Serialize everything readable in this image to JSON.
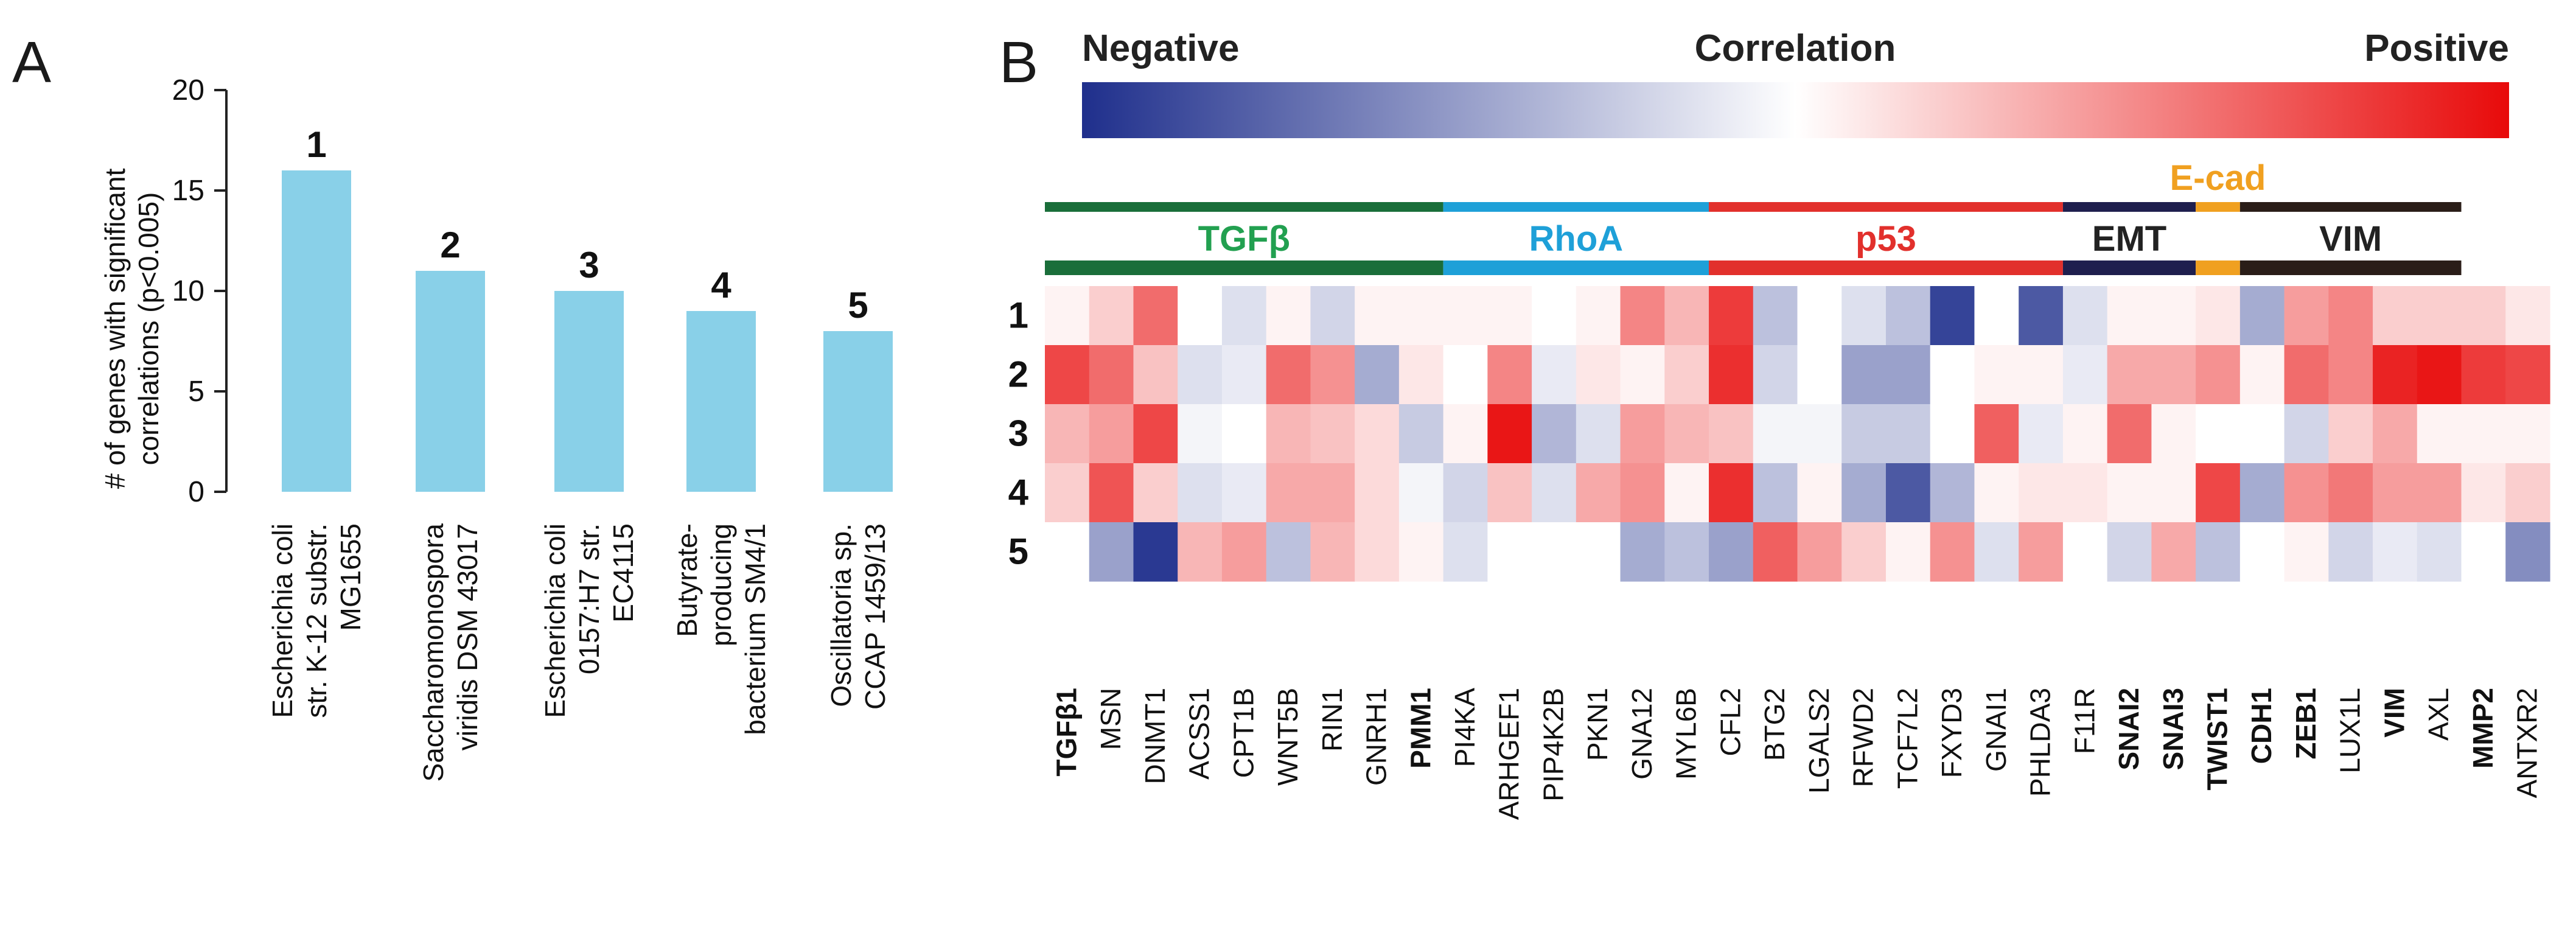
{
  "panel_a_letter": "A",
  "panel_b_letter": "B",
  "colors": {
    "bar": "#89d0e8",
    "tgfb": "#1a6e3a",
    "tgfb_text": "#22a050",
    "rhoa": "#1ea0d8",
    "p53": "#e2302c",
    "emt": "#1f1f4e",
    "ecad": "#f0a020",
    "vim": "#2a1d18",
    "negative": "#1f2f8c",
    "positive": "#e80a0a"
  },
  "chart_data": [
    {
      "type": "bar",
      "title": "",
      "ylabel_line1": "# of genes with significant",
      "ylabel_line2": "correlations (p<0.005)",
      "ylim": [
        0,
        20
      ],
      "yticks": [
        "0",
        "5",
        "10",
        "15",
        "20"
      ],
      "values": [
        16,
        11,
        10,
        9,
        8
      ],
      "bar_labels": [
        "1",
        "2",
        "3",
        "4",
        "5"
      ],
      "categories": [
        [
          "Escherichia coli",
          "str. K-12 substr.",
          "MG1655"
        ],
        [
          "Saccharomonospora",
          "viridis DSM 43017"
        ],
        [
          "Escherichia coli",
          "0157:H7 str.",
          "EC4115"
        ],
        [
          "Butyrate-",
          "producing",
          "bacterium SM4/1"
        ],
        [
          "Oscillatoria sp.",
          "CCAP 1459/13"
        ]
      ]
    },
    {
      "type": "heatmap",
      "scale": {
        "negative_label": "Negative",
        "center_label": "Correlation",
        "positive_label": "Positive",
        "range": [
          -1,
          1
        ]
      },
      "groups": [
        {
          "label": "TGFβ",
          "start": 0,
          "end": 8,
          "color_key": "tgfb"
        },
        {
          "label": "RhoA",
          "start": 9,
          "end": 14,
          "color_key": "rhoa"
        },
        {
          "label": "p53",
          "start": 15,
          "end": 22,
          "color_key": "p53"
        },
        {
          "label": "EMT",
          "start": 23,
          "end": 25,
          "color_key": "emt"
        },
        {
          "label": "E-cad",
          "start": 26,
          "end": 26,
          "color_key": "ecad"
        },
        {
          "label": "VIM",
          "start": 27,
          "end": 31,
          "color_key": "vim"
        }
      ],
      "rows": [
        "1",
        "2",
        "3",
        "4",
        "5"
      ],
      "columns": [
        "TGFβ1",
        "MSN",
        "DNMT1",
        "ACSS1",
        "CPT1B",
        "WNT5B",
        "RIN1",
        "GNRH1",
        "PMM1",
        "PI4KA",
        "ARHGEF1",
        "PIP4K2B",
        "PKN1",
        "GNA12",
        "MYL6B",
        "CFL2",
        "BTG2",
        "LGALS2",
        "RFWD2",
        "TCF7L2",
        "FXYD3",
        "GNAI1",
        "PHLDA3",
        "F11R",
        "SNAI2",
        "SNAI3",
        "TWIST1",
        "CDH1",
        "ZEB1",
        "LUX1L",
        "VIM",
        "AXL",
        "MMP2",
        "ANTXR2"
      ],
      "bold_columns": [
        "TGFβ1",
        "PMM1",
        "SNAI2",
        "SNAI3",
        "TWIST1",
        "CDH1",
        "ZEB1",
        "VIM",
        "MMP2"
      ],
      "values": [
        [
          0.05,
          0.2,
          0.6,
          0.0,
          -0.15,
          0.05,
          -0.2,
          0.05,
          0.05,
          0.05,
          0.05,
          0.0,
          0.05,
          0.5,
          0.3,
          0.8,
          -0.3,
          0.0,
          -0.15,
          -0.3,
          -0.9,
          0.0,
          -0.8,
          -0.15,
          0.05,
          0.05,
          0.1,
          -0.4,
          0.4,
          0.5,
          0.2,
          0.2,
          0.2,
          0.1
        ],
        [
          0.75,
          0.6,
          0.25,
          -0.15,
          -0.1,
          0.6,
          0.45,
          -0.4,
          0.1,
          0.0,
          0.5,
          -0.1,
          0.1,
          0.05,
          0.2,
          0.85,
          -0.2,
          0.0,
          -0.45,
          -0.45,
          0.0,
          0.05,
          0.05,
          -0.1,
          0.35,
          0.35,
          0.45,
          0.05,
          0.6,
          0.5,
          0.9,
          0.95,
          0.8,
          0.75
        ],
        [
          0.3,
          0.4,
          0.75,
          -0.05,
          0.0,
          0.3,
          0.25,
          0.15,
          -0.25,
          0.05,
          0.95,
          -0.35,
          -0.15,
          0.4,
          0.3,
          0.25,
          -0.05,
          -0.05,
          -0.25,
          -0.25,
          0.0,
          0.65,
          -0.1,
          0.05,
          0.6,
          0.05,
          0.0,
          0.0,
          -0.2,
          0.2,
          0.35,
          0.05,
          0.05,
          0.05
        ],
        [
          0.2,
          0.7,
          0.2,
          -0.15,
          -0.1,
          0.35,
          0.35,
          0.15,
          -0.05,
          -0.2,
          0.25,
          -0.15,
          0.35,
          0.45,
          0.05,
          0.85,
          -0.3,
          0.05,
          -0.4,
          -0.8,
          -0.35,
          0.05,
          0.1,
          0.1,
          0.05,
          0.05,
          0.75,
          -0.4,
          0.45,
          0.55,
          0.4,
          0.4,
          0.1,
          0.2
        ],
        [
          0.0,
          -0.45,
          -0.95,
          0.3,
          0.4,
          -0.3,
          0.3,
          0.15,
          0.05,
          -0.15,
          0.0,
          0.0,
          0.0,
          -0.4,
          -0.3,
          -0.45,
          0.65,
          0.4,
          0.2,
          0.05,
          0.45,
          -0.15,
          0.4,
          0.0,
          -0.2,
          0.35,
          -0.3,
          0.0,
          0.05,
          -0.2,
          -0.1,
          -0.15,
          0.0,
          -0.55
        ]
      ]
    }
  ]
}
